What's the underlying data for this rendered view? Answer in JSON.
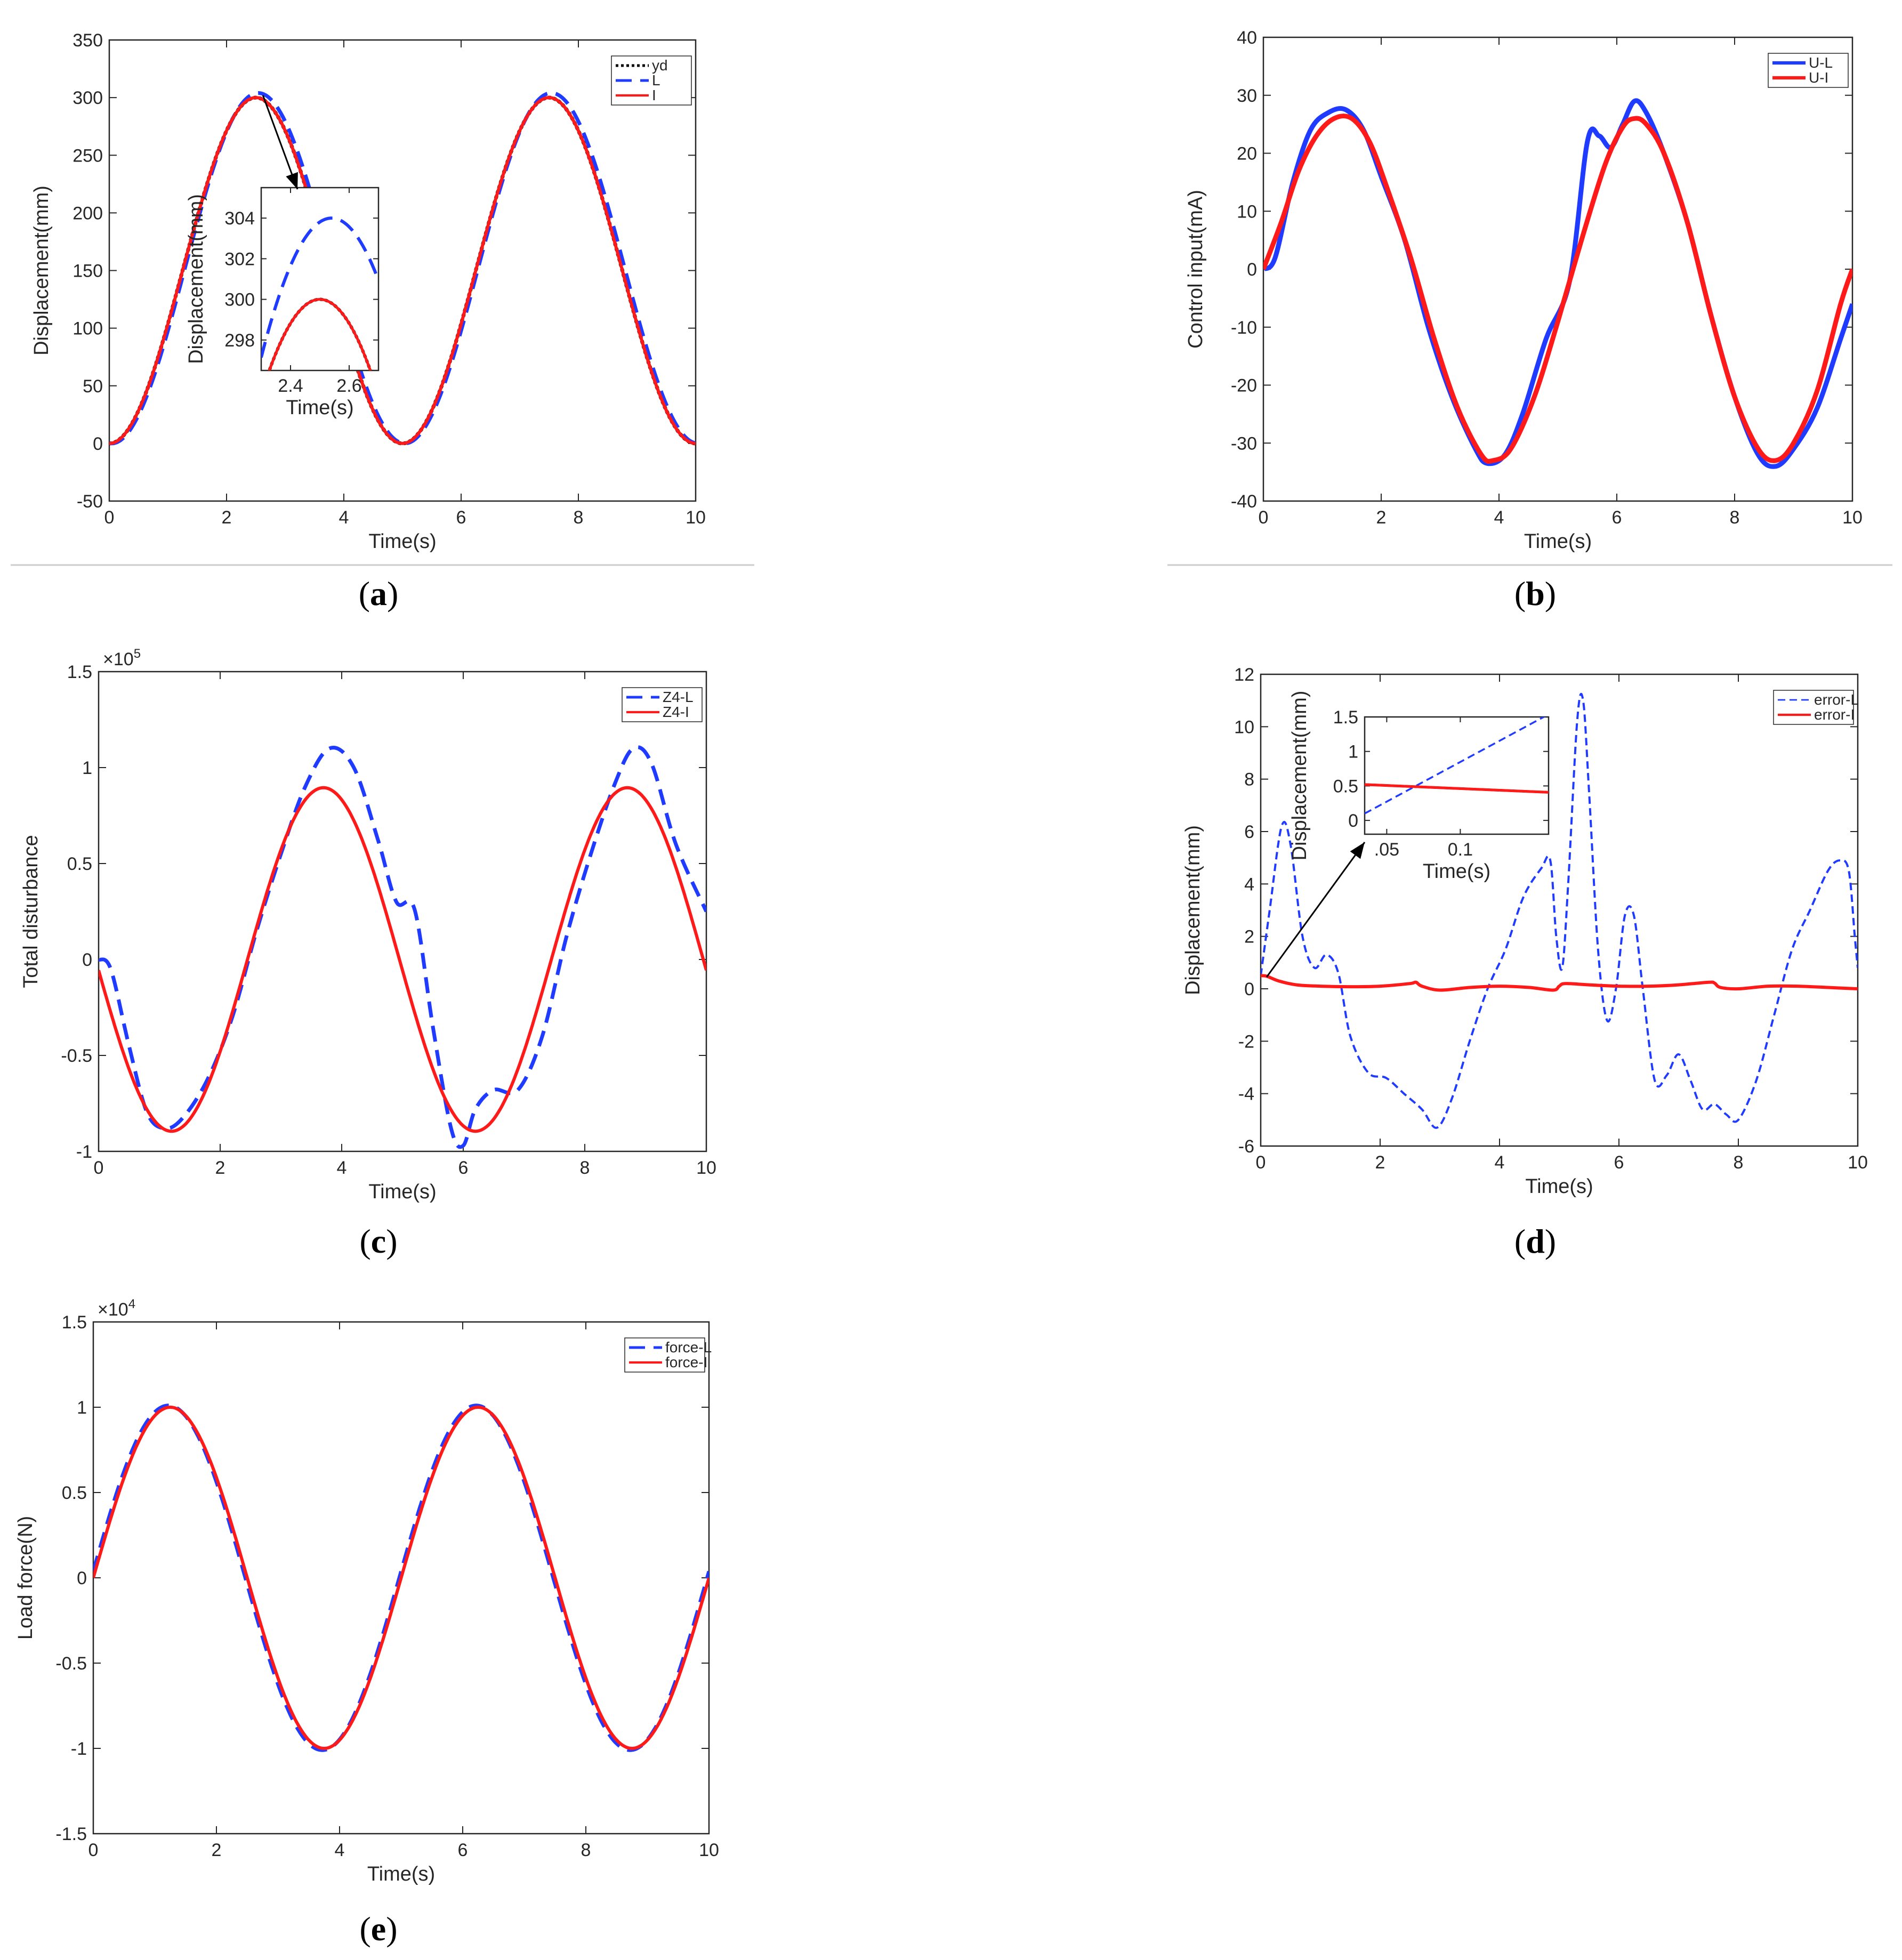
{
  "colors": {
    "blue": "#1f3bff",
    "red": "#ff1a1a",
    "black": "#000000",
    "axis": "#262626",
    "separator": "#cccccc"
  },
  "chart_data": [
    {
      "id": "a",
      "caption_letter": "a",
      "type": "line",
      "xlabel": "Time(s)",
      "ylabel": "Displacement(mm)",
      "xlim": [
        0,
        10
      ],
      "ylim": [
        -50,
        350
      ],
      "xticks": [
        0,
        2,
        4,
        6,
        8,
        10
      ],
      "yticks": [
        -50,
        0,
        50,
        100,
        150,
        200,
        250,
        300,
        350
      ],
      "legend_position": "top-right",
      "series": [
        {
          "name": "yd",
          "style": "dotted",
          "color": "black",
          "fn": "150*(1-cos(2*pi*t/5))"
        },
        {
          "name": "L",
          "style": "dashed",
          "color": "blue",
          "fn": "152*(1-cos(2*pi*(t-0.04)/5))"
        },
        {
          "name": "I",
          "style": "solid",
          "color": "red",
          "fn": "150*(1-cos(2*pi*t/5))"
        }
      ],
      "inset": {
        "xlabel": "Time(s)",
        "ylabel": "Displacement(mm)",
        "xlim": [
          2.3,
          2.7
        ],
        "ylim": [
          296.5,
          305.5
        ],
        "xticks": [
          2.4,
          2.6
        ],
        "yticks": [
          298,
          300,
          302,
          304
        ],
        "points_to": [
          2.6,
          302
        ]
      }
    },
    {
      "id": "b",
      "caption_letter": "b",
      "type": "line",
      "xlabel": "Time(s)",
      "ylabel": "Control input(mA)",
      "xlim": [
        0,
        10
      ],
      "ylim": [
        -40,
        40
      ],
      "xticks": [
        0,
        2,
        4,
        6,
        8,
        10
      ],
      "yticks": [
        -40,
        -30,
        -20,
        -10,
        0,
        10,
        20,
        30,
        40
      ],
      "legend_position": "top-right",
      "series": [
        {
          "name": "U-L",
          "style": "solid-thick",
          "color": "blue",
          "x": [
            0,
            0.2,
            0.5,
            0.8,
            1.1,
            1.4,
            1.7,
            2.0,
            2.4,
            2.8,
            3.2,
            3.6,
            3.8,
            4.1,
            4.4,
            4.8,
            5.2,
            5.5,
            5.7,
            5.9,
            6.1,
            6.3,
            6.5,
            6.8,
            7.2,
            7.6,
            8.0,
            8.4,
            8.7,
            9.0,
            9.4,
            9.8,
            10
          ],
          "y": [
            0,
            2,
            15,
            24,
            27,
            27.5,
            24,
            16,
            5,
            -10,
            -22,
            -31,
            -33.5,
            -32,
            -25,
            -12,
            -2,
            22,
            23,
            21,
            25,
            29,
            27,
            20,
            8,
            -8,
            -22,
            -32,
            -34,
            -31,
            -24,
            -12,
            -6
          ]
        },
        {
          "name": "U-I",
          "style": "solid-thick",
          "color": "red",
          "x": [
            0,
            0.3,
            0.6,
            0.9,
            1.2,
            1.5,
            1.8,
            2.1,
            2.5,
            2.9,
            3.3,
            3.7,
            3.9,
            4.2,
            4.6,
            5.0,
            5.4,
            5.8,
            6.1,
            6.3,
            6.5,
            6.8,
            7.2,
            7.6,
            8.0,
            8.4,
            8.7,
            9.0,
            9.4,
            9.8,
            10
          ],
          "y": [
            0,
            8,
            17,
            23,
            26,
            26,
            22,
            14,
            2,
            -12,
            -24,
            -32,
            -33,
            -31,
            -22,
            -9,
            5,
            18,
            24.5,
            26,
            25,
            20,
            8,
            -8,
            -22,
            -31,
            -33,
            -30,
            -21,
            -6,
            0
          ]
        }
      ]
    },
    {
      "id": "c",
      "caption_letter": "c",
      "type": "line",
      "xlabel": "Time(s)",
      "ylabel": "Total disturbance",
      "multiplier": "×10",
      "multiplier_exp": "5",
      "xlim": [
        0,
        10
      ],
      "ylim": [
        -1,
        1.5
      ],
      "xticks": [
        0,
        2,
        4,
        6,
        8,
        10
      ],
      "yticks": [
        -1,
        -0.5,
        0,
        0.5,
        1,
        1.5
      ],
      "ytick_labels": [
        "-1",
        "-0.5",
        "0",
        "0.5",
        "1",
        "1.5"
      ],
      "legend_position": "top-right",
      "series": [
        {
          "name": "Z4-L",
          "style": "dashed",
          "color": "blue",
          "x": [
            0,
            0.2,
            0.5,
            0.8,
            1.1,
            1.4,
            1.8,
            2.2,
            2.6,
            3.0,
            3.4,
            3.8,
            4.2,
            4.6,
            4.9,
            5.2,
            5.5,
            5.8,
            6.0,
            6.2,
            6.5,
            6.9,
            7.3,
            7.7,
            8.1,
            8.5,
            8.8,
            9.1,
            9.5,
            10
          ],
          "y": [
            0,
            -0.05,
            -0.45,
            -0.8,
            -0.88,
            -0.82,
            -0.62,
            -0.3,
            0.15,
            0.55,
            0.9,
            1.1,
            1.0,
            0.62,
            0.3,
            0.26,
            -0.35,
            -0.88,
            -0.97,
            -0.78,
            -0.68,
            -0.68,
            -0.4,
            0.12,
            0.55,
            0.92,
            1.1,
            1.02,
            0.6,
            0.25
          ]
        },
        {
          "name": "Z4-I",
          "style": "solid",
          "color": "red",
          "fn": "0.895*sin(2*pi*(t+0.05)/5 - pi) - 0.0*t + 0.1 * sin(2*pi*t/5 - pi/2)*0"
        }
      ]
    },
    {
      "id": "d",
      "caption_letter": "d",
      "type": "line",
      "xlabel": "Time(s)",
      "ylabel": "Displacement(mm)",
      "xlim": [
        0,
        10
      ],
      "ylim": [
        -6,
        12
      ],
      "xticks": [
        0,
        2,
        4,
        6,
        8,
        10
      ],
      "yticks": [
        -6,
        -4,
        -2,
        0,
        2,
        4,
        6,
        8,
        10,
        12
      ],
      "legend_position": "top-right",
      "series": [
        {
          "name": "error-L",
          "style": "dashed-fine",
          "color": "blue",
          "x": [
            0,
            0.15,
            0.35,
            0.5,
            0.7,
            0.9,
            1.1,
            1.3,
            1.5,
            1.8,
            2.1,
            2.4,
            2.7,
            2.95,
            3.2,
            3.5,
            3.8,
            4.1,
            4.4,
            4.7,
            4.85,
            4.95,
            5.05,
            5.15,
            5.3,
            5.4,
            5.5,
            5.65,
            5.8,
            5.95,
            6.1,
            6.25,
            6.4,
            6.6,
            6.8,
            7.0,
            7.2,
            7.4,
            7.6,
            7.8,
            8.0,
            8.3,
            8.6,
            8.9,
            9.2,
            9.5,
            9.7,
            9.85,
            9.95,
            10
          ],
          "y": [
            0.5,
            3,
            6.2,
            5.5,
            2,
            0.8,
            1.3,
            0.6,
            -1.8,
            -3.2,
            -3.4,
            -4,
            -4.6,
            -5.3,
            -4.2,
            -2,
            0,
            1.5,
            3.5,
            4.6,
            4.9,
            2,
            0.8,
            4,
            10.2,
            11,
            7.5,
            1.5,
            -1.2,
            0,
            2.8,
            2.8,
            0,
            -3.5,
            -3.3,
            -2.5,
            -3.5,
            -4.6,
            -4.4,
            -4.8,
            -5,
            -3.5,
            -1,
            1.5,
            3,
            4.5,
            4.9,
            4.5,
            2,
            0.8
          ]
        },
        {
          "name": "error-I",
          "style": "solid",
          "color": "red",
          "x": [
            0,
            0.1,
            0.3,
            0.6,
            1.0,
            1.5,
            2.0,
            2.5,
            2.6,
            2.7,
            3.0,
            3.5,
            4.0,
            4.5,
            4.9,
            5.0,
            5.1,
            5.5,
            6.0,
            6.5,
            7.0,
            7.5,
            7.6,
            7.7,
            8.0,
            8.5,
            9.0,
            9.5,
            10
          ],
          "y": [
            0.5,
            0.48,
            0.3,
            0.15,
            0.1,
            0.08,
            0.1,
            0.2,
            0.25,
            0.1,
            -0.05,
            0.05,
            0.1,
            0.05,
            -0.05,
            0.1,
            0.2,
            0.15,
            0.1,
            0.1,
            0.15,
            0.25,
            0.22,
            0.05,
            0.0,
            0.1,
            0.1,
            0.05,
            0.0
          ]
        }
      ],
      "inset": {
        "xlabel": "Time(s)",
        "ylabel": "Displacement(mm)",
        "xlim": [
          0.035,
          0.16
        ],
        "ylim": [
          -0.2,
          1.5
        ],
        "xticks": [
          0.05,
          0.1
        ],
        "yticks": [
          0,
          0.5,
          1,
          1.5
        ],
        "xtick_labels": [
          ".05",
          "0.1"
        ],
        "points_from": [
          0.1,
          0.45
        ]
      }
    },
    {
      "id": "e",
      "caption_letter": "e",
      "type": "line",
      "xlabel": "Time(s)",
      "ylabel": "Load force(N)",
      "multiplier": "×10",
      "multiplier_exp": "4",
      "xlim": [
        0,
        10
      ],
      "ylim": [
        -1.5,
        1.5
      ],
      "xticks": [
        0,
        2,
        4,
        6,
        8,
        10
      ],
      "yticks": [
        -1.5,
        -1,
        -0.5,
        0,
        0.5,
        1,
        1.5
      ],
      "ytick_labels": [
        "-1.5",
        "-1",
        "-0.5",
        "0",
        "0.5",
        "1",
        "1.5"
      ],
      "legend_position": "top-right",
      "series": [
        {
          "name": "force-L",
          "style": "dashed",
          "color": "blue",
          "fn": "1.01*sin(2*pi*(t+0.03)/5)"
        },
        {
          "name": "force-I",
          "style": "solid",
          "color": "red",
          "fn": "1.0*sin(2*pi*t/5)"
        }
      ]
    }
  ]
}
